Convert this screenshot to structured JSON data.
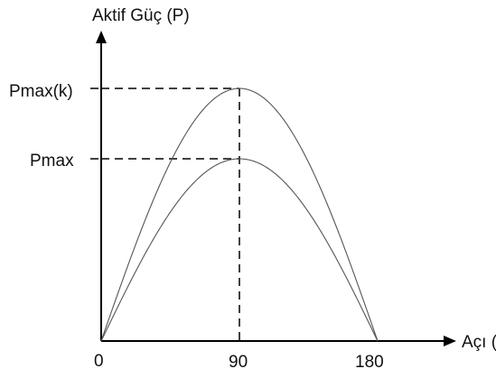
{
  "chart_data": {
    "type": "line",
    "title": "",
    "ylabel": "Aktif Güç (P)",
    "xlabel": "Açı (δ)",
    "x_ticks": [
      "0",
      "90",
      "180"
    ],
    "y_ticks": [
      "Pmax(k)",
      "Pmax"
    ],
    "xlim": [
      0,
      190
    ],
    "ylim": [
      0,
      1.3
    ],
    "series": [
      {
        "label": "Pmax(k)",
        "peak": 1.0,
        "x": [
          0,
          15,
          30,
          45,
          60,
          75,
          90,
          105,
          120,
          135,
          150,
          165,
          180
        ],
        "y": [
          0,
          0.259,
          0.5,
          0.707,
          0.866,
          0.966,
          1.0,
          0.966,
          0.866,
          0.707,
          0.5,
          0.259,
          0
        ]
      },
      {
        "label": "Pmax",
        "peak": 0.74,
        "x": [
          0,
          15,
          30,
          45,
          60,
          75,
          90,
          105,
          120,
          135,
          150,
          165,
          180
        ],
        "y": [
          0,
          0.192,
          0.37,
          0.523,
          0.641,
          0.715,
          0.74,
          0.715,
          0.641,
          0.523,
          0.37,
          0.192,
          0
        ]
      }
    ],
    "guides": {
      "vertical_at_x": 90,
      "horizontal_dashed": true
    },
    "grid": false,
    "legend": "none"
  }
}
